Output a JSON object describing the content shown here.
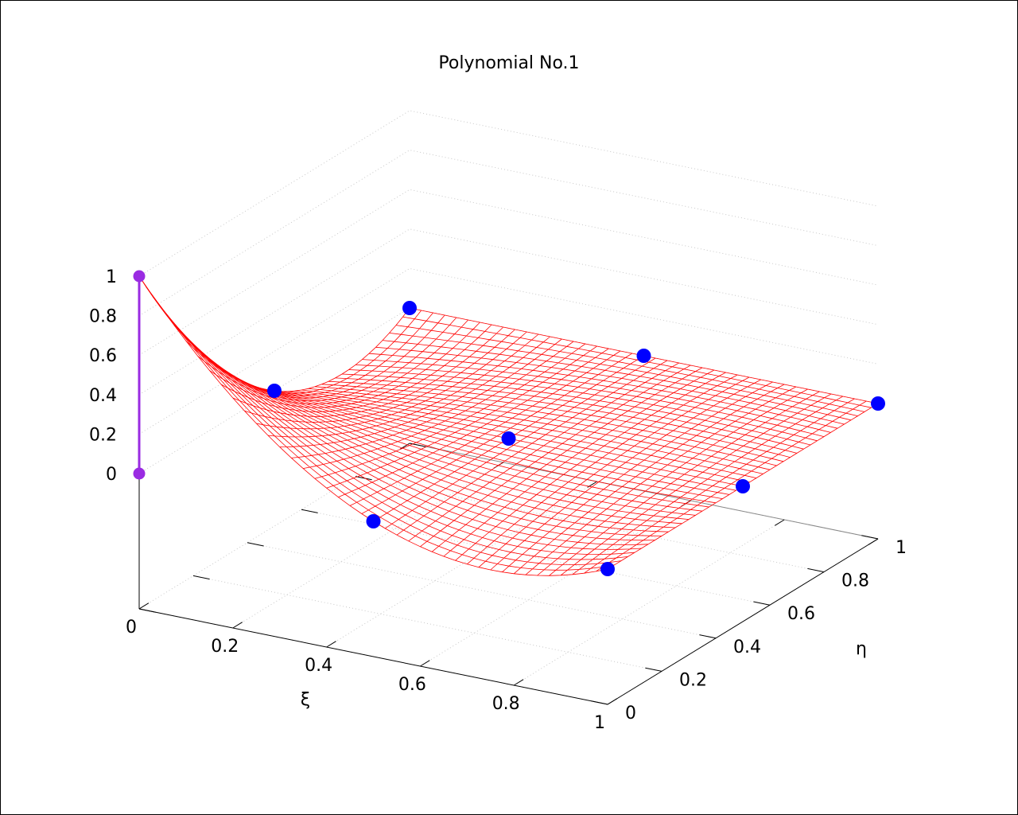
{
  "chart_data": {
    "type": "surface3d",
    "title": "Polynomial No.1",
    "xlabel": "ξ",
    "ylabel": "η",
    "zlabel": "",
    "xlim": [
      0,
      1
    ],
    "ylim": [
      0,
      1
    ],
    "zlim": [
      0,
      1
    ],
    "x_ticks": [
      "0",
      "0.2",
      "0.4",
      "0.6",
      "0.8",
      "1"
    ],
    "y_ticks": [
      "0",
      "0.2",
      "0.4",
      "0.6",
      "0.8",
      "1"
    ],
    "z_ticks": [
      "0",
      "0.2",
      "0.4",
      "0.6",
      "0.8",
      "1"
    ],
    "grid": true,
    "surface": {
      "function": "(1-xi)*(1-2*xi)*(1-eta)*(1-2*eta)",
      "samples": 40,
      "color": "#ff0000"
    },
    "nodes": {
      "color": "#0000ff",
      "points": [
        {
          "x": 0,
          "y": 0.5,
          "z": 0
        },
        {
          "x": 0,
          "y": 1,
          "z": 0
        },
        {
          "x": 0.5,
          "y": 0,
          "z": 0
        },
        {
          "x": 0.5,
          "y": 0.5,
          "z": 0
        },
        {
          "x": 0.5,
          "y": 1,
          "z": 0
        },
        {
          "x": 1,
          "y": 0,
          "z": 0
        },
        {
          "x": 1,
          "y": 0.5,
          "z": 0
        },
        {
          "x": 1,
          "y": 1,
          "z": 0
        }
      ]
    },
    "highlight": {
      "color": "#9a2be2",
      "x": 0,
      "y": 0,
      "z_values": [
        0,
        1
      ]
    }
  }
}
